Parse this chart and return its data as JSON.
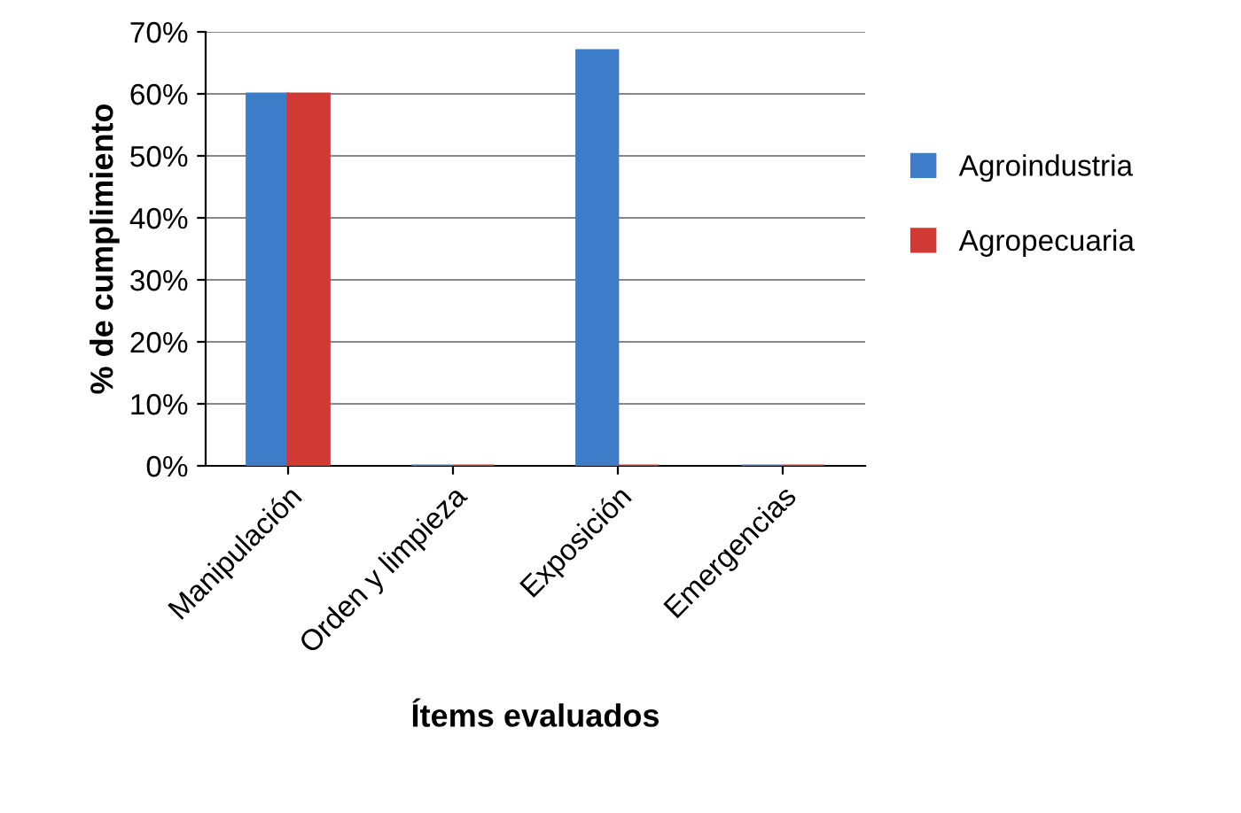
{
  "chart_data": {
    "type": "bar",
    "xlabel": "Ítems evaluados",
    "ylabel": "% de cumplimiento",
    "categories": [
      "Manipulación",
      "Orden y limpieza",
      "Exposición",
      "Emergencias"
    ],
    "series": [
      {
        "name": "Agroindustria",
        "color": "#3d7cc9",
        "values": [
          60,
          0,
          67,
          0
        ]
      },
      {
        "name": "Agropecuaria",
        "color": "#d03a35",
        "values": [
          60,
          0,
          0,
          0
        ]
      }
    ],
    "ylim": [
      0,
      70
    ],
    "yticks": [
      {
        "value": 0,
        "label": "0%"
      },
      {
        "value": 10,
        "label": "10%"
      },
      {
        "value": 20,
        "label": "20%"
      },
      {
        "value": 30,
        "label": "30%"
      },
      {
        "value": 40,
        "label": "40%"
      },
      {
        "value": 50,
        "label": "50%"
      },
      {
        "value": 60,
        "label": "60%"
      },
      {
        "value": 70,
        "label": "70%"
      }
    ],
    "grid": "y",
    "legend": "right"
  }
}
